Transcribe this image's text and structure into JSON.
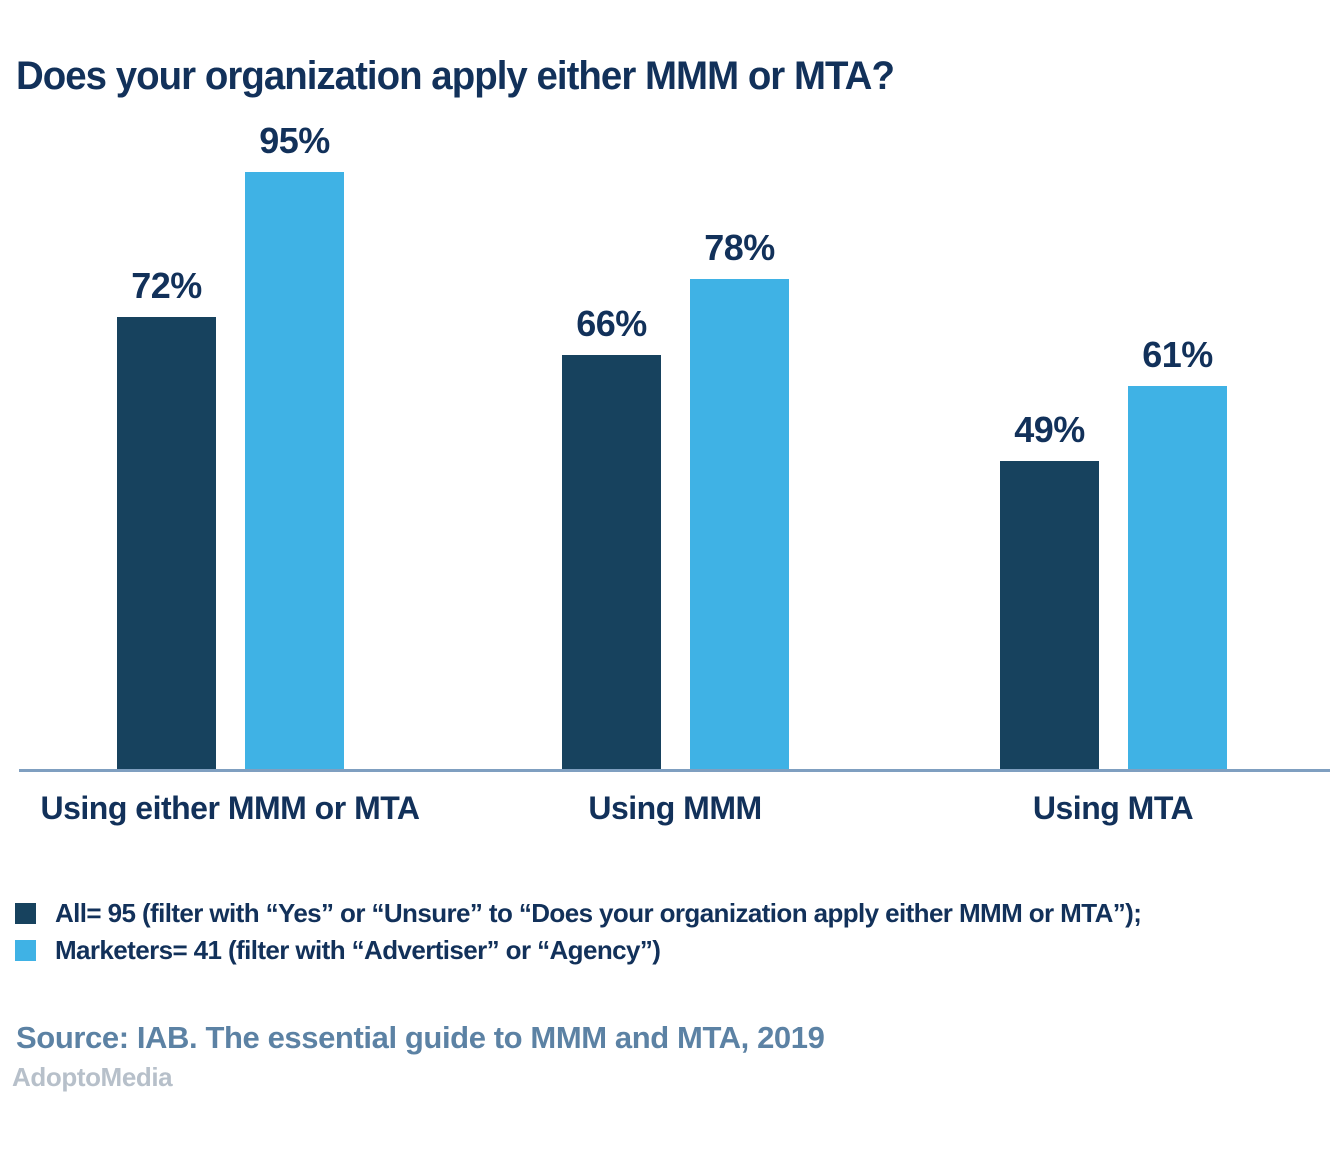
{
  "title": "Does your organization apply either MMM or MTA?",
  "chart_data": {
    "type": "bar",
    "categories": [
      "Using either MMM or MTA",
      "Using MMM",
      "Using MTA"
    ],
    "series": [
      {
        "name": "All",
        "color": "#17425e",
        "values": [
          72,
          66,
          49
        ]
      },
      {
        "name": "Marketers",
        "color": "#3fb2e5",
        "values": [
          95,
          78,
          61
        ]
      }
    ],
    "value_suffix": "%",
    "ylim": [
      0,
      100
    ],
    "grid": false,
    "data_labels_shown": true,
    "legend_position": "bottom",
    "axis_line_color": "#7f9fc0"
  },
  "legend": {
    "items": [
      {
        "swatch_color": "#17425e",
        "label": "All= 95 (filter with “Yes” or “Unsure” to “Does your organization apply either MMM or MTA”);"
      },
      {
        "swatch_color": "#3fb2e5",
        "label": "Marketers= 41 (filter with “Advertiser” or “Agency”)"
      }
    ]
  },
  "footer": {
    "source": "Source: IAB. The essential guide to MMM and MTA, 2019",
    "brand": "AdoptoMedia"
  },
  "colors": {
    "title_text": "#12315a",
    "dark_bar": "#17425e",
    "light_bar": "#3fb2e5",
    "axis_line": "#7f9fc0",
    "source_text": "#5c82a4",
    "brand_text": "#b7c0ca",
    "background": "#ffffff"
  }
}
